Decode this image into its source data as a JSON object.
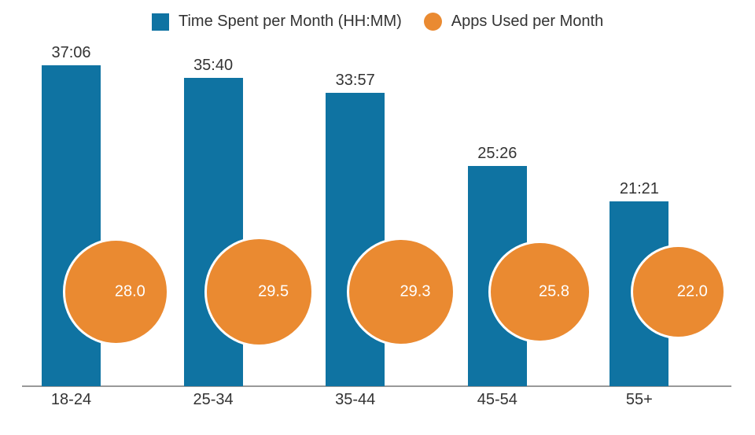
{
  "legend": {
    "items": [
      {
        "label": "Time Spent per Month (HH:MM)",
        "series": "time_spent",
        "shape": "square",
        "color": "#0f73a2"
      },
      {
        "label": "Apps Used per Month",
        "series": "apps_used",
        "shape": "circle",
        "color": "#ea8a31"
      }
    ]
  },
  "chart_data": {
    "type": "bar",
    "categories": [
      "18-24",
      "25-34",
      "35-44",
      "45-54",
      "55+"
    ],
    "series": [
      {
        "name": "Time Spent per Month (HH:MM)",
        "type": "bar",
        "unit": "HH:MM",
        "labels": [
          "37:06",
          "35:40",
          "33:57",
          "25:26",
          "21:21"
        ],
        "values_hours": [
          37.1,
          35.667,
          33.95,
          25.433,
          21.35
        ],
        "color": "#0f73a2"
      },
      {
        "name": "Apps Used per Month",
        "type": "bubble",
        "values": [
          28.0,
          29.5,
          29.3,
          25.8,
          22.0
        ],
        "labels": [
          "28.0",
          "29.5",
          "29.3",
          "25.8",
          "22.0"
        ],
        "color": "#ea8a31"
      }
    ],
    "title": "",
    "xlabel": "",
    "ylabel": "",
    "y_axis_visible": false,
    "grid": false,
    "legend_position": "top",
    "value_labels": "above-bars and inside-bubbles"
  },
  "colors": {
    "bar": "#0f73a2",
    "bubble": "#ea8a31",
    "text": "#333333",
    "bubble_text": "#ffffff",
    "axis_line": "#999999",
    "background": "#ffffff"
  }
}
